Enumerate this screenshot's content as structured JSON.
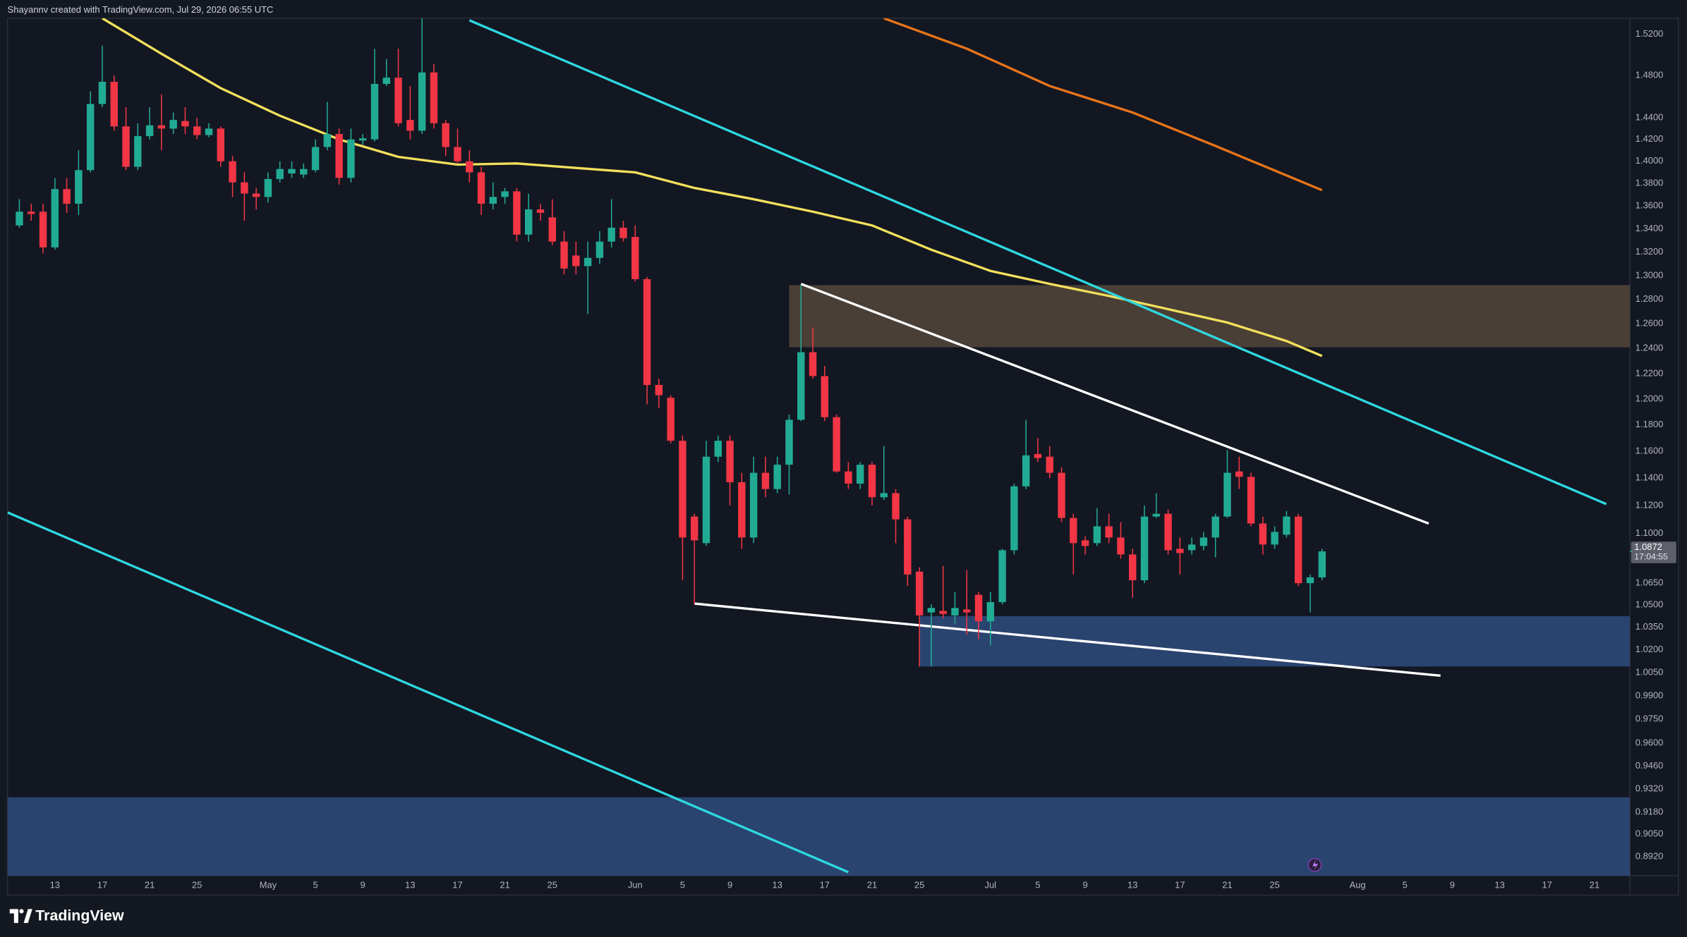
{
  "header": "Shayannv created with TradingView.com, Jul 29, 2026 06:55 UTC",
  "footer": "TradingView",
  "chart_data": {
    "type": "candlestick",
    "log_scale": true,
    "grid": false,
    "up_color": "#22ab94",
    "down_color": "#f23645",
    "x": [
      "04-10",
      "04-11",
      "04-12",
      "04-13",
      "04-14",
      "04-15",
      "04-16",
      "04-17",
      "04-18",
      "04-19",
      "04-20",
      "04-21",
      "04-22",
      "04-23",
      "04-24",
      "04-25",
      "04-26",
      "04-27",
      "04-28",
      "04-29",
      "04-30",
      "05-01",
      "05-02",
      "05-03",
      "05-04",
      "05-05",
      "05-06",
      "05-07",
      "05-08",
      "05-09",
      "05-10",
      "05-11",
      "05-12",
      "05-13",
      "05-14",
      "05-15",
      "05-16",
      "05-17",
      "05-18",
      "05-19",
      "05-20",
      "05-21",
      "05-22",
      "05-23",
      "05-24",
      "05-25",
      "05-26",
      "05-27",
      "05-28",
      "05-29",
      "05-30",
      "05-31",
      "06-01",
      "06-02",
      "06-03",
      "06-04",
      "06-05",
      "06-06",
      "06-07",
      "06-08",
      "06-09",
      "06-10",
      "06-11",
      "06-12",
      "06-13",
      "06-14",
      "06-15",
      "06-16",
      "06-17",
      "06-18",
      "06-19",
      "06-20",
      "06-21",
      "06-22",
      "06-23",
      "06-24",
      "06-25",
      "06-26",
      "06-27",
      "06-28",
      "06-29",
      "06-30",
      "07-01",
      "07-02",
      "07-03",
      "07-04",
      "07-05",
      "07-06",
      "07-07",
      "07-08",
      "07-09",
      "07-10",
      "07-11",
      "07-12",
      "07-13",
      "07-14",
      "07-15",
      "07-16",
      "07-17",
      "07-18",
      "07-19",
      "07-20",
      "07-21",
      "07-22",
      "07-23",
      "07-24",
      "07-25",
      "07-26",
      "07-27",
      "07-28",
      "07-29"
    ],
    "open": [
      1.343,
      1.355,
      1.355,
      1.324,
      1.375,
      1.362,
      1.392,
      1.453,
      1.474,
      1.432,
      1.395,
      1.423,
      1.433,
      1.43,
      1.437,
      1.432,
      1.424,
      1.43,
      1.4,
      1.381,
      1.371,
      1.368,
      1.384,
      1.389,
      1.388,
      1.392,
      1.413,
      1.425,
      1.385,
      1.419,
      1.42,
      1.472,
      1.478,
      1.438,
      1.428,
      1.483,
      1.435,
      1.413,
      1.4,
      1.39,
      1.362,
      1.368,
      1.373,
      1.335,
      1.357,
      1.35,
      1.329,
      1.317,
      1.308,
      1.315,
      1.329,
      1.341,
      1.333,
      1.297,
      1.211,
      1.201,
      1.168,
      1.112,
      1.093,
      1.156,
      1.168,
      1.137,
      1.097,
      1.144,
      1.132,
      1.15,
      1.184,
      1.237,
      1.218,
      1.186,
      1.145,
      1.136,
      1.15,
      1.126,
      1.129,
      1.11,
      1.073,
      1.045,
      1.046,
      1.043,
      1.047,
      1.057,
      1.039,
      1.052,
      1.088,
      1.134,
      1.158,
      1.156,
      1.144,
      1.111,
      1.095,
      1.093,
      1.105,
      1.097,
      1.085,
      1.067,
      1.112,
      1.114,
      1.089,
      1.088,
      1.091,
      1.097,
      1.112,
      1.145,
      1.141,
      1.107,
      1.092,
      1.099,
      1.112,
      1.065,
      1.069
    ],
    "high": [
      1.366,
      1.362,
      1.362,
      1.385,
      1.385,
      1.41,
      1.465,
      1.509,
      1.48,
      1.45,
      1.435,
      1.45,
      1.462,
      1.445,
      1.45,
      1.44,
      1.435,
      1.432,
      1.405,
      1.39,
      1.376,
      1.39,
      1.4,
      1.4,
      1.398,
      1.42,
      1.455,
      1.43,
      1.43,
      1.425,
      1.506,
      1.496,
      1.506,
      1.47,
      1.536,
      1.491,
      1.438,
      1.43,
      1.41,
      1.395,
      1.381,
      1.376,
      1.376,
      1.371,
      1.362,
      1.366,
      1.338,
      1.329,
      1.329,
      1.338,
      1.366,
      1.347,
      1.343,
      1.299,
      1.216,
      1.203,
      1.172,
      1.114,
      1.168,
      1.172,
      1.172,
      1.144,
      1.156,
      1.156,
      1.156,
      1.188,
      1.292,
      1.257,
      1.226,
      1.188,
      1.152,
      1.152,
      1.152,
      1.164,
      1.132,
      1.112,
      1.076,
      1.0505,
      1.077,
      1.059,
      1.074,
      1.059,
      1.059,
      1.089,
      1.136,
      1.184,
      1.17,
      1.164,
      1.148,
      1.114,
      1.098,
      1.118,
      1.114,
      1.108,
      1.089,
      1.12,
      1.129,
      1.117,
      1.097,
      1.097,
      1.101,
      1.114,
      1.161,
      1.156,
      1.144,
      1.112,
      1.105,
      1.116,
      1.114,
      1.071,
      1.089
    ],
    "low": [
      1.341,
      1.347,
      1.319,
      1.322,
      1.354,
      1.352,
      1.39,
      1.45,
      1.428,
      1.392,
      1.392,
      1.42,
      1.41,
      1.425,
      1.425,
      1.42,
      1.422,
      1.395,
      1.368,
      1.347,
      1.357,
      1.363,
      1.381,
      1.385,
      1.385,
      1.39,
      1.41,
      1.379,
      1.381,
      1.415,
      1.418,
      1.47,
      1.432,
      1.42,
      1.425,
      1.43,
      1.405,
      1.398,
      1.381,
      1.352,
      1.357,
      1.362,
      1.329,
      1.329,
      1.347,
      1.326,
      1.301,
      1.301,
      1.268,
      1.31,
      1.324,
      1.329,
      1.295,
      1.196,
      1.193,
      1.166,
      1.067,
      1.0505,
      1.091,
      1.152,
      1.12,
      1.089,
      1.093,
      1.126,
      1.129,
      1.128,
      1.183,
      1.216,
      1.183,
      1.144,
      1.132,
      1.132,
      1.12,
      1.124,
      1.093,
      1.063,
      1.009,
      1.009,
      1.041,
      1.0375,
      1.03,
      1.027,
      1.023,
      1.0505,
      1.085,
      1.132,
      1.152,
      1.14,
      1.108,
      1.071,
      1.085,
      1.091,
      1.093,
      1.082,
      1.055,
      1.065,
      1.111,
      1.085,
      1.071,
      1.085,
      1.088,
      1.083,
      1.111,
      1.132,
      1.105,
      1.085,
      1.089,
      1.097,
      1.063,
      1.045,
      1.067
    ],
    "close": [
      1.355,
      1.353,
      1.324,
      1.375,
      1.362,
      1.392,
      1.453,
      1.474,
      1.432,
      1.395,
      1.423,
      1.433,
      1.43,
      1.438,
      1.432,
      1.424,
      1.43,
      1.4,
      1.381,
      1.371,
      1.368,
      1.384,
      1.393,
      1.393,
      1.393,
      1.413,
      1.425,
      1.385,
      1.42,
      1.421,
      1.472,
      1.478,
      1.435,
      1.428,
      1.483,
      1.435,
      1.413,
      1.4,
      1.39,
      1.362,
      1.368,
      1.373,
      1.335,
      1.357,
      1.354,
      1.329,
      1.306,
      1.308,
      1.315,
      1.329,
      1.341,
      1.332,
      1.297,
      1.211,
      1.203,
      1.168,
      1.097,
      1.095,
      1.156,
      1.168,
      1.137,
      1.097,
      1.144,
      1.132,
      1.15,
      1.184,
      1.237,
      1.218,
      1.186,
      1.145,
      1.136,
      1.15,
      1.126,
      1.129,
      1.11,
      1.071,
      1.043,
      1.048,
      1.044,
      1.048,
      1.045,
      1.039,
      1.052,
      1.088,
      1.134,
      1.157,
      1.155,
      1.144,
      1.111,
      1.093,
      1.091,
      1.105,
      1.097,
      1.085,
      1.067,
      1.112,
      1.114,
      1.088,
      1.086,
      1.092,
      1.097,
      1.112,
      1.144,
      1.141,
      1.107,
      1.092,
      1.101,
      1.112,
      1.065,
      1.069,
      1.0872
    ],
    "countdown": "17:04:55",
    "xlim": [
      "04-09",
      "08-24"
    ],
    "xticks": [
      {
        "value": "04-13",
        "label": "13"
      },
      {
        "value": "04-17",
        "label": "17"
      },
      {
        "value": "04-21",
        "label": "21"
      },
      {
        "value": "04-25",
        "label": "25"
      },
      {
        "value": "05-01",
        "label": "May"
      },
      {
        "value": "05-05",
        "label": "5"
      },
      {
        "value": "05-09",
        "label": "9"
      },
      {
        "value": "05-13",
        "label": "13"
      },
      {
        "value": "05-17",
        "label": "17"
      },
      {
        "value": "05-21",
        "label": "21"
      },
      {
        "value": "05-25",
        "label": "25"
      },
      {
        "value": "06-01",
        "label": "Jun"
      },
      {
        "value": "06-05",
        "label": "5"
      },
      {
        "value": "06-09",
        "label": "9"
      },
      {
        "value": "06-13",
        "label": "13"
      },
      {
        "value": "06-17",
        "label": "17"
      },
      {
        "value": "06-21",
        "label": "21"
      },
      {
        "value": "06-25",
        "label": "25"
      },
      {
        "value": "07-01",
        "label": "Jul"
      },
      {
        "value": "07-05",
        "label": "5"
      },
      {
        "value": "07-09",
        "label": "9"
      },
      {
        "value": "07-13",
        "label": "13"
      },
      {
        "value": "07-17",
        "label": "17"
      },
      {
        "value": "07-21",
        "label": "21"
      },
      {
        "value": "07-25",
        "label": "25"
      },
      {
        "value": "08-01",
        "label": "Aug"
      },
      {
        "value": "08-05",
        "label": "5"
      },
      {
        "value": "08-09",
        "label": "9"
      },
      {
        "value": "08-13",
        "label": "13"
      },
      {
        "value": "08-17",
        "label": "17"
      },
      {
        "value": "08-21",
        "label": "21"
      }
    ],
    "ylim": [
      0.881,
      1.536
    ],
    "yticks": [
      {
        "value": 1.52,
        "label": "1.5200"
      },
      {
        "value": 1.48,
        "label": "1.4800"
      },
      {
        "value": 1.44,
        "label": "1.4400"
      },
      {
        "value": 1.42,
        "label": "1.4200"
      },
      {
        "value": 1.4,
        "label": "1.4000"
      },
      {
        "value": 1.38,
        "label": "1.3800"
      },
      {
        "value": 1.36,
        "label": "1.3600"
      },
      {
        "value": 1.34,
        "label": "1.3400"
      },
      {
        "value": 1.32,
        "label": "1.3200"
      },
      {
        "value": 1.3,
        "label": "1.3000"
      },
      {
        "value": 1.28,
        "label": "1.2800"
      },
      {
        "value": 1.26,
        "label": "1.2600"
      },
      {
        "value": 1.24,
        "label": "1.2400"
      },
      {
        "value": 1.22,
        "label": "1.2200"
      },
      {
        "value": 1.2,
        "label": "1.2000"
      },
      {
        "value": 1.18,
        "label": "1.1800"
      },
      {
        "value": 1.16,
        "label": "1.1600"
      },
      {
        "value": 1.14,
        "label": "1.1400"
      },
      {
        "value": 1.12,
        "label": "1.1200"
      },
      {
        "value": 1.1,
        "label": "1.1000"
      },
      {
        "value": 1.065,
        "label": "1.0650"
      },
      {
        "value": 1.05,
        "label": "1.0500"
      },
      {
        "value": 1.035,
        "label": "1.0350"
      },
      {
        "value": 1.02,
        "label": "1.0200"
      },
      {
        "value": 1.005,
        "label": "1.0050"
      },
      {
        "value": 0.99,
        "label": "0.9900"
      },
      {
        "value": 0.975,
        "label": "0.9750"
      },
      {
        "value": 0.96,
        "label": "0.9600"
      },
      {
        "value": 0.946,
        "label": "0.9460"
      },
      {
        "value": 0.932,
        "label": "0.9320"
      },
      {
        "value": 0.918,
        "label": "0.9180"
      },
      {
        "value": 0.905,
        "label": "0.9050"
      },
      {
        "value": 0.892,
        "label": "0.8920"
      }
    ],
    "zones": [
      {
        "color": "#55473a",
        "x0": "06-14",
        "y": [
          1.292,
          1.241
        ]
      },
      {
        "color": "#2f4c7e",
        "x0": "06-25",
        "y": [
          1.0425,
          1.009
        ]
      },
      {
        "color": "#2f4c7e",
        "x0": "04-09",
        "y": [
          0.927,
          0.881
        ]
      }
    ],
    "lines": [
      {
        "color": "#f2e05c",
        "x": [
          "04-17",
          "04-22",
          "04-27",
          "05-02",
          "05-07",
          "05-12",
          "05-17",
          "05-22",
          "05-27",
          "06-01",
          "06-06",
          "06-11",
          "06-16",
          "06-21",
          "06-26",
          "07-01",
          "07-06",
          "07-11",
          "07-16",
          "07-21",
          "07-26",
          "07-29"
        ],
        "y": [
          1.536,
          1.501,
          1.468,
          1.442,
          1.42,
          1.404,
          1.397,
          1.398,
          1.394,
          1.39,
          1.376,
          1.366,
          1.355,
          1.343,
          1.322,
          1.304,
          1.293,
          1.283,
          1.272,
          1.261,
          1.246,
          1.234
        ]
      },
      {
        "color": "#e8751a",
        "x": [
          "06-22",
          "06-29",
          "07-06",
          "07-13",
          "07-20",
          "07-29"
        ],
        "y": [
          1.536,
          1.506,
          1.47,
          1.445,
          1.414,
          1.374
        ]
      },
      {
        "color": "#2ed8e0",
        "x": [
          "05-18",
          "08-22"
        ],
        "y": [
          1.534,
          1.121
        ]
      },
      {
        "color": "#2ed8e0",
        "x": [
          "04-09",
          "06-19"
        ],
        "y": [
          1.115,
          0.883
        ]
      },
      {
        "color": "#ffffff",
        "x": [
          "06-15",
          "08-07"
        ],
        "y": [
          1.293,
          1.107
        ]
      },
      {
        "color": "#ffffff",
        "x": [
          "06-06",
          "08-08"
        ],
        "y": [
          1.051,
          1.003
        ]
      }
    ]
  }
}
